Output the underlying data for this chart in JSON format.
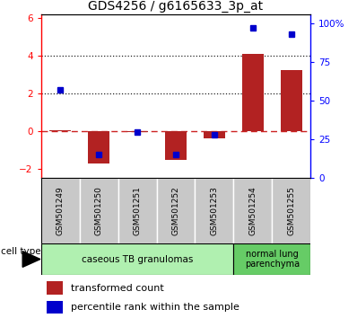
{
  "title": "GDS4256 / g6165633_3p_at",
  "samples": [
    "GSM501249",
    "GSM501250",
    "GSM501251",
    "GSM501252",
    "GSM501253",
    "GSM501254",
    "GSM501255"
  ],
  "transformed_count": [
    0.05,
    -1.72,
    -0.05,
    -1.52,
    -0.38,
    4.12,
    3.22
  ],
  "percentile_rank": [
    57,
    15,
    30,
    15,
    28,
    97,
    93
  ],
  "ylim_left": [
    -2.5,
    6.2
  ],
  "ylim_right": [
    0,
    106
  ],
  "yticks_left": [
    -2,
    0,
    2,
    4,
    6
  ],
  "yticks_right": [
    0,
    25,
    50,
    75,
    100
  ],
  "ytick_labels_right": [
    "0",
    "25",
    "50",
    "75",
    "100%"
  ],
  "bar_color": "#b22222",
  "marker_color": "#0000cc",
  "dashed_line_color": "#cc2222",
  "dot_line_color": "#222222",
  "bar_width": 0.55,
  "marker_size": 5,
  "title_fontsize": 10,
  "tick_fontsize": 7.5,
  "legend_fontsize": 8,
  "sample_fontsize": 6.5,
  "cell_type_fontsize": 7.5,
  "group1_color": "#b0f0b0",
  "group2_color": "#66cc66",
  "group1_label": "caseous TB granulomas",
  "group2_label": "normal lung\nparenchyma",
  "legend_transformed": "transformed count",
  "legend_percentile": "percentile rank within the sample",
  "cell_type_label": "cell type"
}
